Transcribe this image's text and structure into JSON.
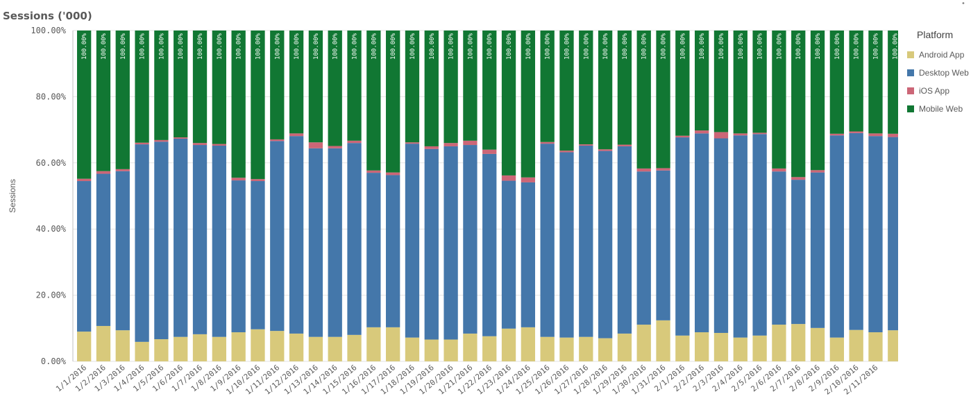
{
  "chart_data": {
    "type": "bar",
    "stacked": true,
    "title": "Sessions ('000)",
    "ylabel": "Sessions",
    "xlabel": "",
    "ylim": [
      0,
      100
    ],
    "ytick_labels": [
      "0.00%",
      "20.00%",
      "40.00%",
      "60.00%",
      "80.00%",
      "100.00%"
    ],
    "yticks": [
      0,
      20,
      40,
      60,
      80,
      100
    ],
    "legend_title": "Platform",
    "legend_position": "right",
    "total_label": "100.00%",
    "categories": [
      "1/1/2016",
      "1/2/2016",
      "1/3/2016",
      "1/4/2016",
      "1/5/2016",
      "1/6/2016",
      "1/7/2016",
      "1/8/2016",
      "1/9/2016",
      "1/10/2016",
      "1/11/2016",
      "1/12/2016",
      "1/13/2016",
      "1/14/2016",
      "1/15/2016",
      "1/16/2016",
      "1/17/2016",
      "1/18/2016",
      "1/19/2016",
      "1/20/2016",
      "1/21/2016",
      "1/22/2016",
      "1/23/2016",
      "1/24/2016",
      "1/25/2016",
      "1/26/2016",
      "1/27/2016",
      "1/28/2016",
      "1/29/2016",
      "1/30/2016",
      "1/31/2016",
      "2/1/2016",
      "2/2/2016",
      "2/3/2016",
      "2/4/2016",
      "2/5/2016",
      "2/6/2016",
      "2/7/2016",
      "2/8/2016",
      "2/9/2016",
      "2/10/2016",
      "2/11/2016",
      ""
    ],
    "series": [
      {
        "name": "Android App",
        "color": "#d8c97b",
        "values": [
          9.0,
          10.7,
          9.4,
          5.9,
          6.7,
          7.4,
          8.2,
          7.4,
          8.8,
          9.7,
          9.2,
          8.4,
          7.4,
          7.4,
          8.0,
          10.3,
          10.3,
          7.2,
          6.6,
          6.6,
          8.4,
          7.6,
          9.9,
          10.3,
          7.4,
          7.2,
          7.4,
          7.0,
          8.4,
          11.1,
          12.4,
          7.8,
          8.8,
          8.6,
          7.2,
          7.8,
          11.1,
          11.3,
          10.1,
          7.2,
          9.5,
          8.8,
          9.4
        ]
      },
      {
        "name": "Desktop Web",
        "color": "#4477aa",
        "values": [
          45.5,
          46.0,
          48.1,
          59.7,
          59.7,
          59.9,
          57.2,
          57.8,
          45.9,
          44.8,
          57.4,
          59.7,
          57.0,
          57.0,
          58.0,
          46.7,
          46.0,
          58.6,
          57.6,
          58.4,
          57.0,
          55.1,
          44.7,
          43.8,
          58.4,
          56.0,
          57.8,
          56.6,
          56.6,
          46.3,
          45.3,
          59.9,
          60.1,
          58.8,
          61.1,
          60.9,
          46.3,
          43.6,
          47.0,
          61.1,
          59.5,
          59.3,
          58.4
        ]
      },
      {
        "name": "iOS App",
        "color": "#cc6677",
        "values": [
          0.7,
          0.8,
          0.6,
          0.5,
          0.5,
          0.4,
          0.6,
          0.5,
          0.8,
          0.6,
          0.5,
          0.8,
          1.8,
          0.7,
          0.7,
          0.7,
          0.8,
          0.4,
          0.8,
          1.0,
          1.3,
          1.3,
          1.6,
          1.5,
          0.5,
          0.5,
          0.4,
          0.5,
          0.5,
          0.9,
          0.7,
          0.5,
          0.9,
          1.9,
          0.6,
          0.4,
          0.9,
          0.8,
          0.7,
          0.5,
          0.5,
          0.8,
          1.0
        ]
      },
      {
        "name": "Mobile Web",
        "color": "#117733",
        "values": [
          44.8,
          42.5,
          41.9,
          33.9,
          33.1,
          32.3,
          34.0,
          34.3,
          44.5,
          44.9,
          32.9,
          31.1,
          33.8,
          34.9,
          33.3,
          42.3,
          42.9,
          33.8,
          35.0,
          34.0,
          33.3,
          36.0,
          43.8,
          44.4,
          33.7,
          36.3,
          34.4,
          35.9,
          34.5,
          41.7,
          41.6,
          31.8,
          30.2,
          30.7,
          31.1,
          30.9,
          41.7,
          44.3,
          42.2,
          31.2,
          30.5,
          31.1,
          31.2
        ]
      }
    ]
  },
  "ui": {
    "title": "Sessions ('000)",
    "legend_title": "Platform",
    "legend_items": [
      {
        "label": "Android App",
        "color": "#d8c97b"
      },
      {
        "label": "Desktop Web",
        "color": "#4477aa"
      },
      {
        "label": "iOS App",
        "color": "#cc6677"
      },
      {
        "label": "Mobile Web",
        "color": "#117733"
      }
    ]
  }
}
